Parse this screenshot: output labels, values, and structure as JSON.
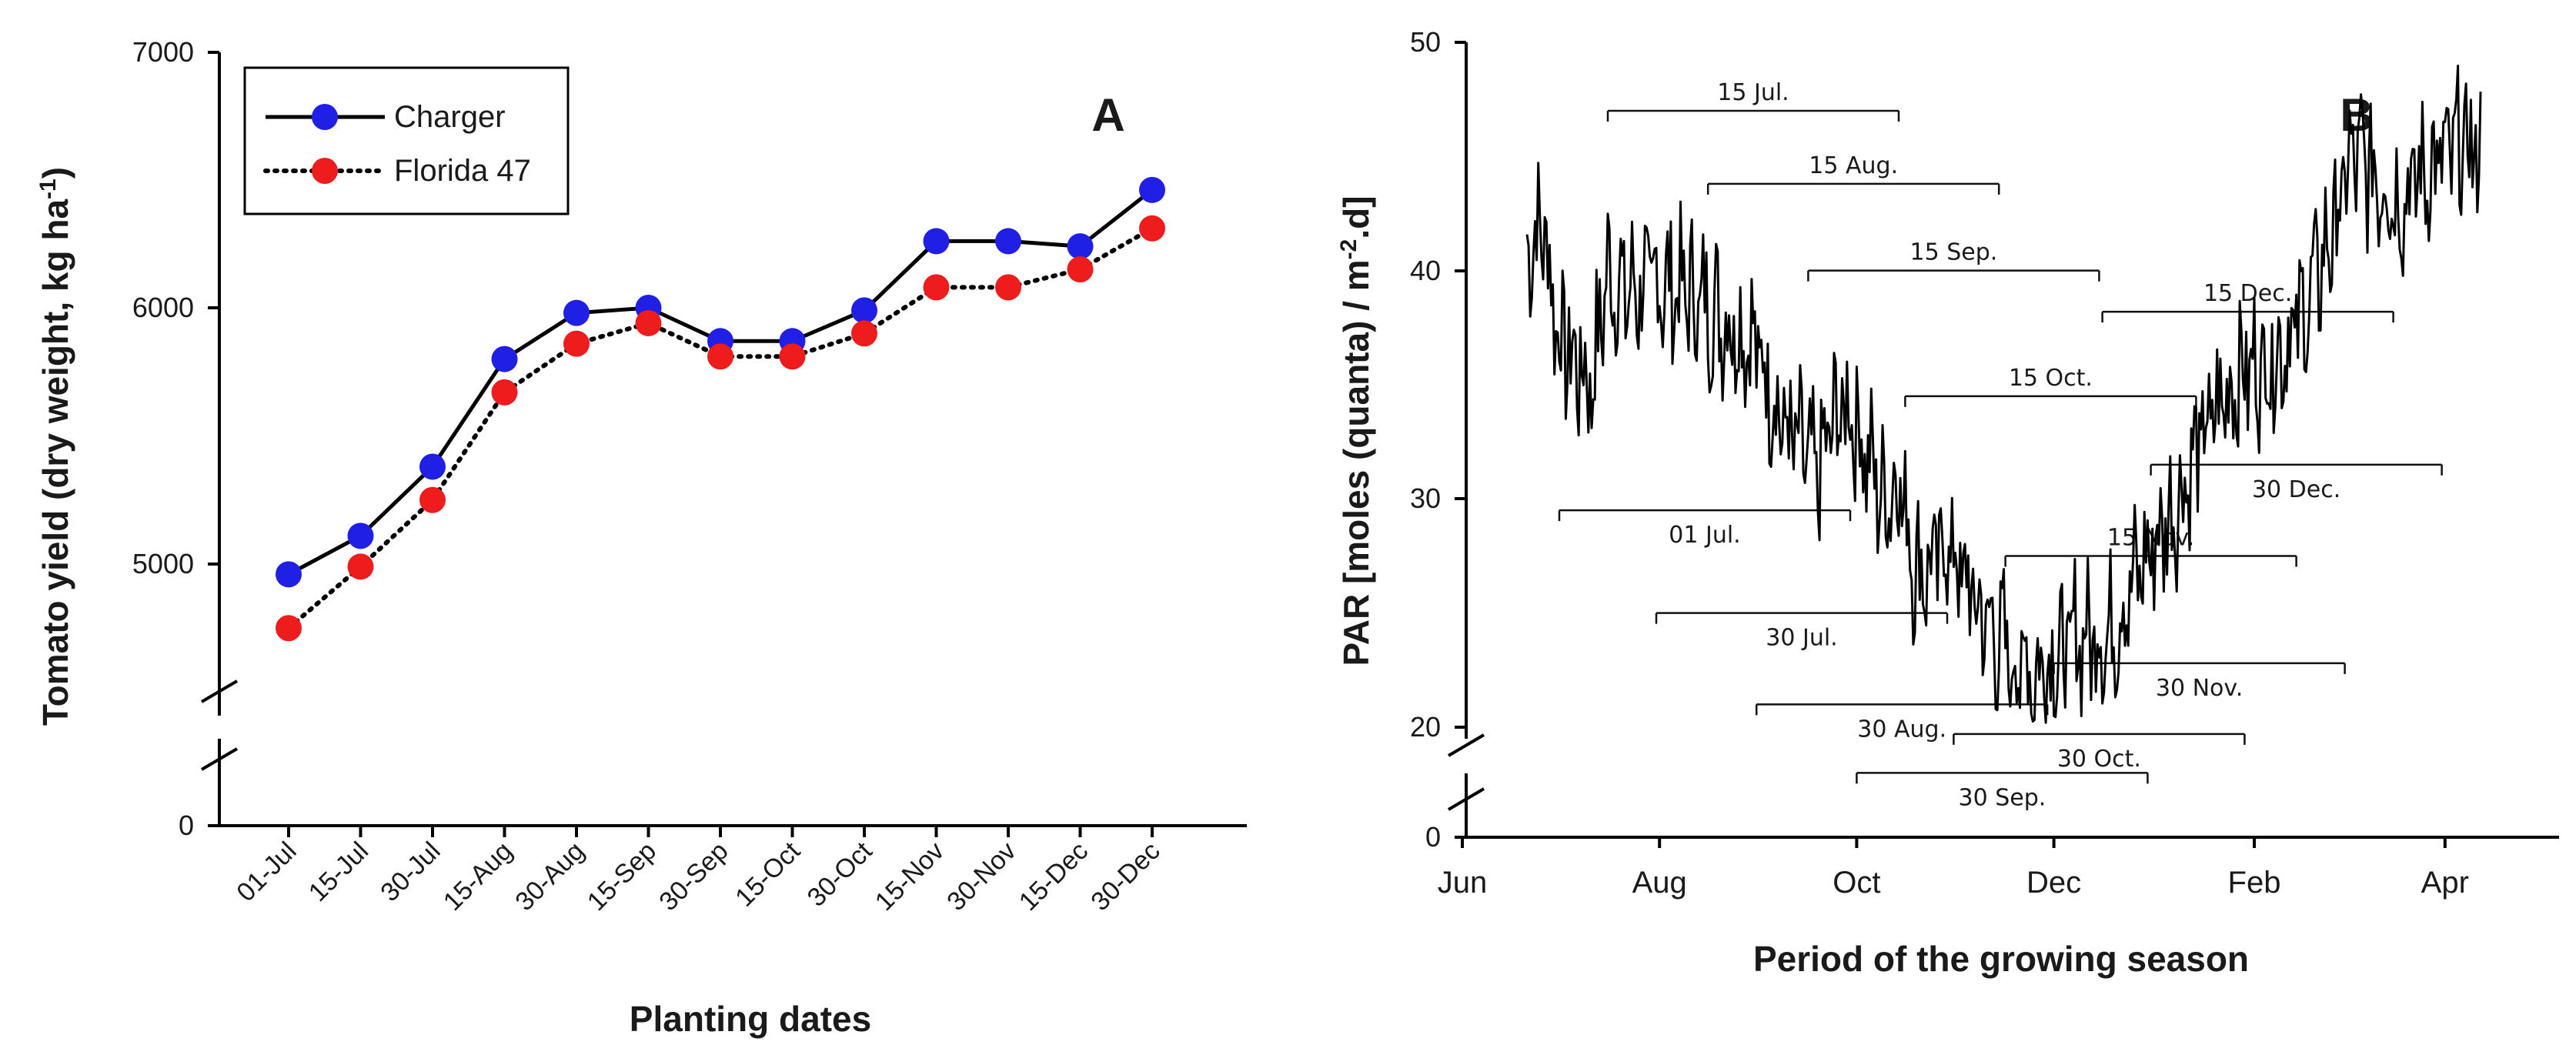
{
  "chart_data": [
    {
      "type": "line",
      "panel_label": "A",
      "xlabel": "Planting dates",
      "ylabel": "Tomato yield (dry weight, kg ha",
      "ylabel_sup": "-1",
      "ylabel_close": ")",
      "categories": [
        "01-Jul",
        "15-Jul",
        "30-Jul",
        "15-Aug",
        "30-Aug",
        "15-Sep",
        "30-Sep",
        "15-Oct",
        "30-Oct",
        "15-Nov",
        "30-Nov",
        "15-Dec",
        "30-Dec"
      ],
      "yticks": [
        "0",
        "5000",
        "6000",
        "7000"
      ],
      "ylim": [
        4500,
        7000
      ],
      "axis_break": true,
      "legend_position": "top-left",
      "series": [
        {
          "name": "Charger",
          "line_style": "solid",
          "marker_color": "#1f1fe6",
          "values": [
            4960,
            5110,
            5380,
            5800,
            5980,
            6000,
            5870,
            5870,
            5990,
            6260,
            6260,
            6240,
            6460
          ]
        },
        {
          "name": "Florida 47",
          "line_style": "dotted",
          "marker_color": "#ee1c1c",
          "values": [
            4750,
            4990,
            5250,
            5670,
            5860,
            5940,
            5810,
            5810,
            5900,
            6080,
            6080,
            6150,
            6310
          ]
        }
      ]
    },
    {
      "type": "line",
      "panel_label": "B",
      "xlabel": "Period of the growing season",
      "ylabel_prefix": "PAR [moles (quanta) / m",
      "ylabel_sup": "-2",
      "ylabel_suffix": ".d]",
      "xticks": [
        "Jun",
        "Aug",
        "Oct",
        "Dec",
        "Feb",
        "Apr"
      ],
      "yticks": [
        "0",
        "20",
        "30",
        "40",
        "50"
      ],
      "ylim": [
        20,
        50
      ],
      "axis_break": true,
      "x_unit": "days since 1 Jun (approx.)",
      "series": [
        {
          "name": "PAR daily",
          "anchor_days": [
            20,
            25,
            30,
            40,
            45,
            50,
            60,
            70,
            80,
            90,
            95,
            100,
            110,
            115,
            120,
            130,
            135,
            140,
            145,
            150,
            160,
            170,
            175,
            180,
            185,
            190,
            200,
            210,
            220,
            230,
            240,
            250,
            255,
            260,
            265,
            270,
            275,
            280,
            285,
            290,
            295,
            300,
            305,
            310,
            315
          ],
          "anchor_values": [
            41,
            42,
            37,
            35,
            40,
            39,
            39.5,
            39,
            38,
            37,
            35,
            33,
            31,
            33.5,
            34,
            30,
            31,
            27,
            27,
            28,
            25,
            23,
            22.5,
            22.5,
            23,
            24,
            24,
            27,
            29.5,
            33,
            35.5,
            36,
            37,
            38,
            40,
            42,
            45,
            44.5,
            44,
            43,
            44,
            44.5,
            45,
            45.5,
            45
          ]
        }
      ],
      "planting_windows": [
        {
          "label": "15 Jul.",
          "start_day": 45,
          "end_day": 135,
          "value": 47.0,
          "label_pos": "above"
        },
        {
          "label": "15 Aug.",
          "start_day": 76,
          "end_day": 166,
          "value": 43.8,
          "label_pos": "above"
        },
        {
          "label": "15 Sep.",
          "start_day": 107,
          "end_day": 197,
          "value": 40.0,
          "label_pos": "above"
        },
        {
          "label": "15 Dec.",
          "start_day": 198,
          "end_day": 288,
          "value": 38.2,
          "label_pos": "above"
        },
        {
          "label": "15 Oct.",
          "start_day": 137,
          "end_day": 227,
          "value": 34.5,
          "label_pos": "above"
        },
        {
          "label": "30 Dec.",
          "start_day": 213,
          "end_day": 303,
          "value": 31.5,
          "label_pos": "below"
        },
        {
          "label": "01 Jul.",
          "start_day": 30,
          "end_day": 120,
          "value": 29.5,
          "label_pos": "below"
        },
        {
          "label": "15 Nov.",
          "start_day": 168,
          "end_day": 258,
          "value": 27.5,
          "label_pos": "above"
        },
        {
          "label": "30 Jul.",
          "start_day": 60,
          "end_day": 150,
          "value": 25.0,
          "label_pos": "below"
        },
        {
          "label": "30 Nov.",
          "start_day": 183,
          "end_day": 273,
          "value": 22.8,
          "label_pos": "below"
        },
        {
          "label": "30 Aug.",
          "start_day": 91,
          "end_day": 181,
          "value": 21.0,
          "label_pos": "below"
        },
        {
          "label": "30 Oct.",
          "start_day": 152,
          "end_day": 242,
          "value": 19.7,
          "label_pos": "below"
        },
        {
          "label": "30 Sep.",
          "start_day": 122,
          "end_day": 212,
          "value": 18.0,
          "label_pos": "below"
        }
      ]
    }
  ]
}
